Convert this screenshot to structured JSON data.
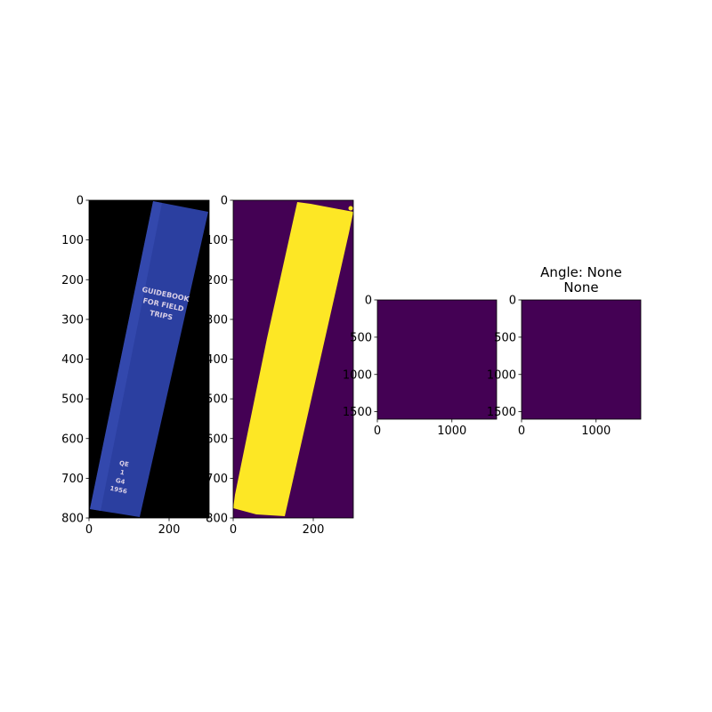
{
  "chart_data": [
    {
      "type": "image",
      "image_content": "blue book spine on black background",
      "spine_text": [
        "GUIDEBOOK",
        "FOR FIELD",
        "TRIPS"
      ],
      "call_number": [
        "QE",
        "1",
        "G4",
        "1956"
      ],
      "colors": {
        "background": "#000000",
        "spine": "#2b3fa0",
        "text": "#d9cfe6"
      },
      "xlim": [
        0,
        300
      ],
      "ylim": [
        800,
        0
      ],
      "xticks": [
        0,
        200
      ],
      "yticks": [
        0,
        100,
        200,
        300,
        400,
        500,
        600,
        700,
        800
      ],
      "title": ""
    },
    {
      "type": "image",
      "image_content": "binary mask of book spine",
      "colormap": "viridis",
      "colors": {
        "background": "#440154",
        "foreground": "#fde725"
      },
      "xlim": [
        0,
        300
      ],
      "ylim": [
        800,
        0
      ],
      "xticks": [
        0,
        200
      ],
      "yticks": [
        0,
        100,
        200,
        300,
        400,
        500,
        600,
        700,
        800
      ],
      "title": ""
    },
    {
      "type": "image",
      "image_content": "uniform field",
      "colors": {
        "fill": "#440154"
      },
      "xlim": [
        0,
        1600
      ],
      "ylim": [
        1600,
        0
      ],
      "xticks": [
        0,
        1000
      ],
      "yticks": [
        0,
        500,
        1000,
        1500
      ],
      "title": ""
    },
    {
      "type": "image",
      "image_content": "uniform field",
      "colors": {
        "fill": "#440154"
      },
      "xlim": [
        0,
        1600
      ],
      "ylim": [
        1600,
        0
      ],
      "xticks": [
        0,
        1000
      ],
      "yticks": [
        0,
        500,
        1000,
        1500
      ],
      "title": "Angle: None",
      "subtitle": "None"
    }
  ]
}
